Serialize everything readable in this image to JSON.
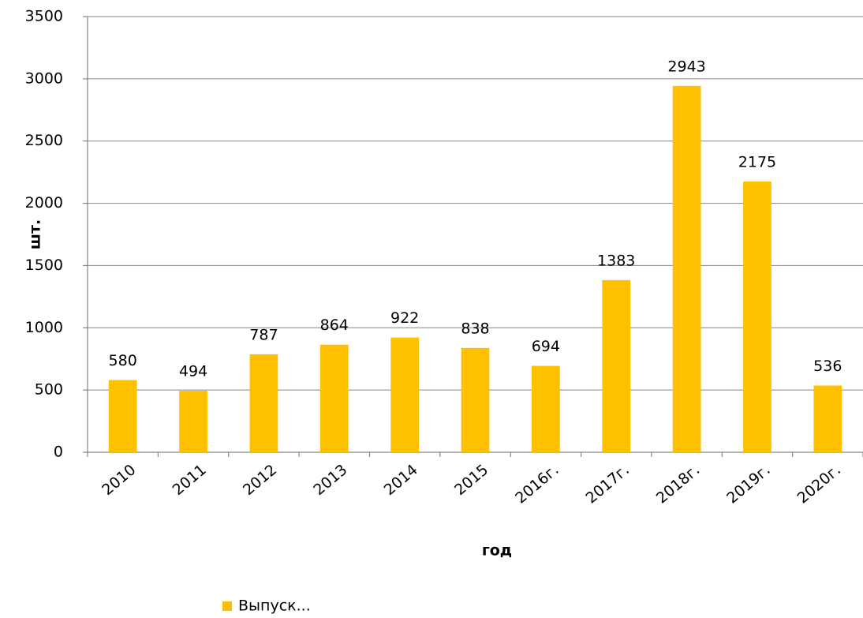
{
  "chart_data": {
    "type": "bar",
    "categories": [
      "2010",
      "2011",
      "2012",
      "2013",
      "2014",
      "2015",
      "2016г.",
      "2017г.",
      "2018г.",
      "2019г.",
      "2020г."
    ],
    "series": [
      {
        "name": "Выпуск...",
        "color": "#ffc000",
        "values": [
          580,
          494,
          787,
          864,
          922,
          838,
          694,
          1383,
          2943,
          2175,
          536
        ]
      }
    ],
    "ylim": [
      0,
      3500
    ],
    "yticks": [
      0,
      500,
      1000,
      1500,
      2000,
      2500,
      3000,
      3500
    ],
    "y_label": "шт.",
    "x_label": "год",
    "grid": true,
    "legend": "bottom"
  }
}
